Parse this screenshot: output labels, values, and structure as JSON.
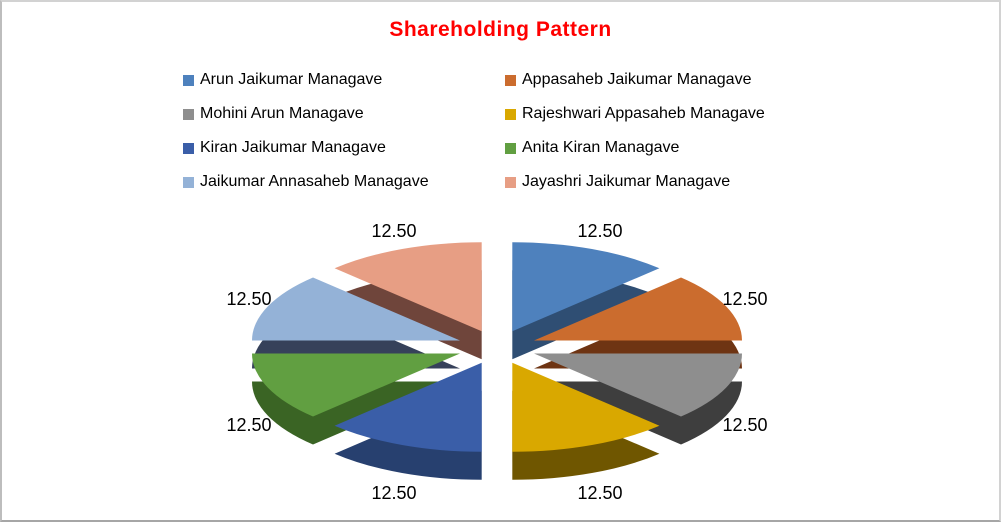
{
  "styles": {
    "title_color": "#FF0000",
    "label_color": "#000000",
    "background": "#FFFFFF",
    "border_color": "#D2D2D2"
  },
  "chart_data": {
    "type": "pie",
    "title": "Shareholding Pattern",
    "effect": "3d-exploded",
    "legend_position": "top-two-columns",
    "data_labels": "outside, value shown with 2 decimals",
    "total": 100,
    "series": [
      {
        "name": "Arun Jaikumar Managave",
        "value": 12.5,
        "label": "12.50",
        "color": "#4E81BD",
        "side_color": "#2F4E73"
      },
      {
        "name": "Appasaheb Jaikumar Managave",
        "value": 12.5,
        "label": "12.50",
        "color": "#CB6C2E",
        "side_color": "#6E3413"
      },
      {
        "name": "Mohini Arun Managave",
        "value": 12.5,
        "label": "12.50",
        "color": "#8E8E8E",
        "side_color": "#3E3E3E"
      },
      {
        "name": "Rajeshwari Appasaheb Managave",
        "value": 12.5,
        "label": "12.50",
        "color": "#D9A800",
        "side_color": "#6F5600"
      },
      {
        "name": "Kiran Jaikumar Managave",
        "value": 12.5,
        "label": "12.50",
        "color": "#3A5EA8",
        "side_color": "#27406F"
      },
      {
        "name": "Anita Kiran Managave",
        "value": 12.5,
        "label": "12.50",
        "color": "#619F41",
        "side_color": "#3A6424"
      },
      {
        "name": "Jaikumar Annasaheb Managave",
        "value": 12.5,
        "label": "12.50",
        "color": "#94B2D7",
        "side_color": "#36415A"
      },
      {
        "name": "Jayashri Jaikumar Managave",
        "value": 12.5,
        "label": "12.50",
        "color": "#E79E84",
        "side_color": "#6F453B"
      }
    ]
  }
}
